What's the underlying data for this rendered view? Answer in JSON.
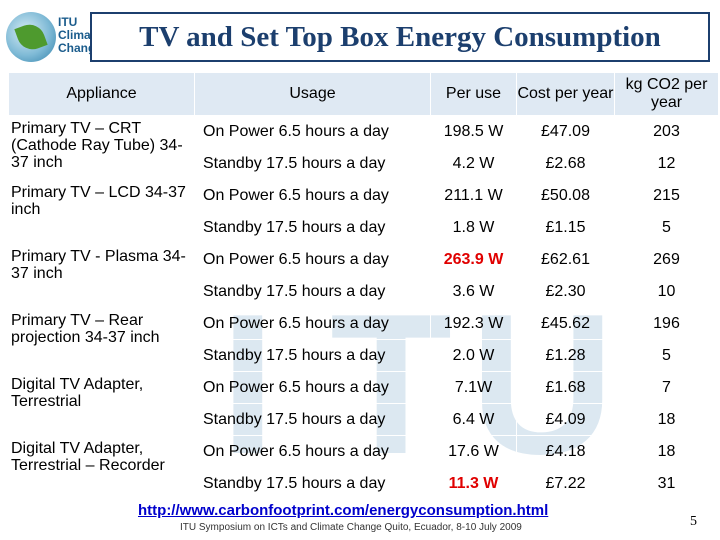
{
  "logo": {
    "text": "ITU\nClima\nChang"
  },
  "title": "TV and Set Top Box Energy Consumption",
  "watermark": {
    "letters": [
      "I",
      "T",
      "U"
    ]
  },
  "table": {
    "headers": [
      "Appliance",
      "Usage",
      "Per use",
      "Cost per year",
      "kg CO2 per year"
    ],
    "groups": [
      {
        "appliance": "Primary TV – CRT (Cathode Ray Tube) 34-37 inch",
        "rows": [
          {
            "usage": "On Power 6.5 hours a day",
            "per_use": "198.5 W",
            "cost": "£47.09",
            "co2": "203",
            "highlight": false
          },
          {
            "usage": "Standby 17.5 hours a day",
            "per_use": "4.2 W",
            "cost": "£2.68",
            "co2": "12",
            "highlight": false
          }
        ]
      },
      {
        "appliance": "Primary TV – LCD 34-37 inch",
        "rows": [
          {
            "usage": "On Power 6.5 hours a day",
            "per_use": "211.1 W",
            "cost": "£50.08",
            "co2": "215",
            "highlight": false
          },
          {
            "usage": "Standby 17.5 hours a day",
            "per_use": "1.8 W",
            "cost": "£1.15",
            "co2": "5",
            "highlight": false
          }
        ]
      },
      {
        "appliance": "Primary TV - Plasma 34-37 inch",
        "rows": [
          {
            "usage": "On Power 6.5 hours a day",
            "per_use": "263.9 W",
            "cost": "£62.61",
            "co2": "269",
            "highlight": true
          },
          {
            "usage": "Standby 17.5 hours a day",
            "per_use": "3.6 W",
            "cost": "£2.30",
            "co2": "10",
            "highlight": false
          }
        ]
      },
      {
        "appliance": "Primary TV – Rear projection 34-37 inch",
        "rows": [
          {
            "usage": "On Power 6.5 hours a day",
            "per_use": "192.3 W",
            "cost": "£45.62",
            "co2": "196",
            "highlight": false
          },
          {
            "usage": "Standby 17.5 hours a day",
            "per_use": "2.0 W",
            "cost": "£1.28",
            "co2": "5",
            "highlight": false
          }
        ]
      },
      {
        "appliance": "Digital TV Adapter, Terrestrial",
        "rows": [
          {
            "usage": "On Power 6.5 hours a day",
            "per_use": "7.1W",
            "cost": "£1.68",
            "co2": "7",
            "highlight": false
          },
          {
            "usage": "Standby 17.5 hours a day",
            "per_use": "6.4 W",
            "cost": "£4.09",
            "co2": "18",
            "highlight": false
          }
        ]
      },
      {
        "appliance": "Digital TV Adapter, Terrestrial – Recorder",
        "rows": [
          {
            "usage": "On Power 6.5 hours a day",
            "per_use": "17.6 W",
            "cost": "£4.18",
            "co2": "18",
            "highlight": false
          },
          {
            "usage": "Standby 17.5 hours a day",
            "per_use": "11.3 W",
            "cost": "£7.22",
            "co2": "31",
            "highlight": true
          }
        ]
      }
    ]
  },
  "link": "http://www.carbonfootprint.com/energyconsumption.html",
  "footer": "ITU Symposium on ICTs and Climate Change Quito, Ecuador, 8-10 July 2009",
  "page_number": "5",
  "colors": {
    "title": "#1c3f6e",
    "header_bg": "#dfe9f3",
    "highlight": "#e00000",
    "link": "#0000cc"
  }
}
